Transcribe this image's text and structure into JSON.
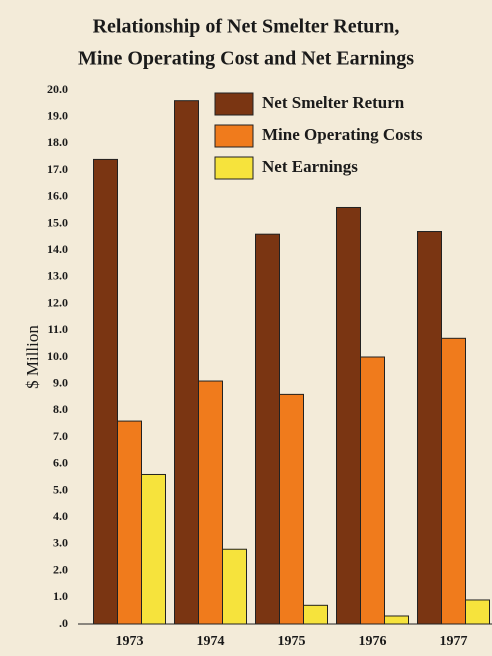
{
  "chart_data": {
    "type": "bar",
    "title_lines": [
      "Relationship of Net Smelter Return,",
      "Mine Operating Cost and Net Earnings"
    ],
    "y_label": "$ Million",
    "categories": [
      "1973",
      "1974",
      "1975",
      "1976",
      "1977"
    ],
    "series": [
      {
        "name": "Net Smelter Return",
        "color": "#7a3512",
        "values": [
          17.4,
          19.6,
          14.6,
          15.6,
          14.7
        ]
      },
      {
        "name": "Mine Operating Costs",
        "color": "#f07b1c",
        "values": [
          7.6,
          9.1,
          8.6,
          10.0,
          10.7
        ]
      },
      {
        "name": "Net Earnings",
        "color": "#f6e33c",
        "values": [
          5.6,
          2.8,
          0.7,
          0.3,
          0.9
        ]
      }
    ],
    "ylim": [
      0,
      20
    ],
    "yticks": [
      {
        "value": 0,
        "label": ".0"
      },
      {
        "value": 1,
        "label": "1.0"
      },
      {
        "value": 2,
        "label": "2.0"
      },
      {
        "value": 3,
        "label": "3.0"
      },
      {
        "value": 4,
        "label": "4.0"
      },
      {
        "value": 5,
        "label": "5.0"
      },
      {
        "value": 6,
        "label": "6.0"
      },
      {
        "value": 7,
        "label": "7.0"
      },
      {
        "value": 8,
        "label": "8.0"
      },
      {
        "value": 9,
        "label": "9.0"
      },
      {
        "value": 10,
        "label": "10.0"
      },
      {
        "value": 11,
        "label": "11.0"
      },
      {
        "value": 12,
        "label": "12.0"
      },
      {
        "value": 13,
        "label": "13.0"
      },
      {
        "value": 14,
        "label": "14.0"
      },
      {
        "value": 15,
        "label": "15.0"
      },
      {
        "value": 16,
        "label": "16.0"
      },
      {
        "value": 17,
        "label": "17.0"
      },
      {
        "value": 18,
        "label": "18.0"
      },
      {
        "value": 19,
        "label": "19.0"
      },
      {
        "value": 20,
        "label": "20.0"
      }
    ],
    "grid": false,
    "legend": "top-right"
  }
}
